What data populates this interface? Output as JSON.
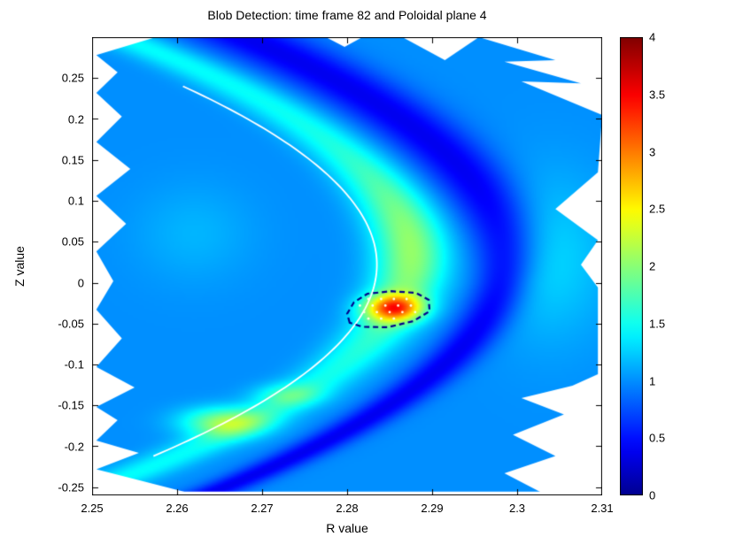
{
  "chart_data": {
    "type": "heatmap",
    "title": "Blob Detection: time frame 82 and Poloidal plane 4",
    "xlabel": "R value",
    "ylabel": "Z value",
    "xlim": [
      2.25,
      2.31
    ],
    "ylim": [
      -0.26,
      0.3
    ],
    "grid": false,
    "xticks": [
      {
        "v": 2.25,
        "label": "2.25"
      },
      {
        "v": 2.26,
        "label": "2.26"
      },
      {
        "v": 2.27,
        "label": "2.27"
      },
      {
        "v": 2.28,
        "label": "2.28"
      },
      {
        "v": 2.29,
        "label": "2.29"
      },
      {
        "v": 2.3,
        "label": "2.3"
      },
      {
        "v": 2.31,
        "label": "2.31"
      }
    ],
    "yticks": [
      {
        "v": -0.25,
        "label": "-0.25"
      },
      {
        "v": -0.2,
        "label": "-0.2"
      },
      {
        "v": -0.15,
        "label": "-0.15"
      },
      {
        "v": -0.1,
        "label": "-0.1"
      },
      {
        "v": -0.05,
        "label": "-0.05"
      },
      {
        "v": 0.0,
        "label": "0"
      },
      {
        "v": 0.05,
        "label": "0.05"
      },
      {
        "v": 0.1,
        "label": "0.1"
      },
      {
        "v": 0.15,
        "label": "0.15"
      },
      {
        "v": 0.2,
        "label": "0.2"
      },
      {
        "v": 0.25,
        "label": "0.25"
      }
    ],
    "colorbar": {
      "min": 0,
      "max": 4,
      "position": "right",
      "ticks": [
        {
          "v": 0,
          "label": "0"
        },
        {
          "v": 0.5,
          "label": "0.5"
        },
        {
          "v": 1,
          "label": "1"
        },
        {
          "v": 1.5,
          "label": "1.5"
        },
        {
          "v": 2,
          "label": "2"
        },
        {
          "v": 2.5,
          "label": "2.5"
        },
        {
          "v": 3,
          "label": "3"
        },
        {
          "v": 3.5,
          "label": "3.5"
        },
        {
          "v": 4,
          "label": "4"
        }
      ]
    },
    "colormap": {
      "name": "jet",
      "stops": [
        [
          0.0,
          [
            0,
            0,
            143
          ]
        ],
        [
          0.11,
          [
            0,
            0,
            255
          ]
        ],
        [
          0.36,
          [
            0,
            255,
            255
          ]
        ],
        [
          0.62,
          [
            255,
            255,
            0
          ]
        ],
        [
          0.87,
          [
            255,
            0,
            0
          ]
        ],
        [
          1.0,
          [
            128,
            0,
            0
          ]
        ]
      ]
    },
    "field": {
      "base": 1.0,
      "dark_band": {
        "vertex_r": 2.2985,
        "vertex_z": 0.03,
        "curvature": 0.42,
        "depth": 0.62,
        "width": 0.0032,
        "width_top_extra": 0.012
      },
      "bright_band": {
        "vertex_r": 2.2875,
        "vertex_z": 0.03,
        "curvature": 0.47,
        "width": 0.0042,
        "amp_base": 0.45,
        "amp_peak": 0.6,
        "peak_z": 0.04,
        "peak_sigma": 0.1
      },
      "blobs": [
        {
          "r": 2.2855,
          "z": -0.031,
          "amp": 1.7,
          "sr": 0.0033,
          "sz": 0.016
        },
        {
          "r": 2.2655,
          "z": -0.17,
          "amp": 0.95,
          "sr": 0.005,
          "sz": 0.018
        },
        {
          "r": 2.273,
          "z": -0.137,
          "amp": 0.45,
          "sr": 0.004,
          "sz": 0.014
        },
        {
          "r": 2.304,
          "z": 0.03,
          "amp": 0.28,
          "sr": 0.007,
          "sz": 0.1
        },
        {
          "r": 2.262,
          "z": 0.06,
          "amp": 0.15,
          "sr": 0.007,
          "sz": 0.06
        }
      ]
    },
    "separatrix": {
      "color": "#ffffff",
      "width": 1.8,
      "vertex_r": 2.2835,
      "vertex_z": 0.022,
      "curvature": 0.48,
      "z_min": -0.215,
      "z_max": 0.24
    },
    "blob_contour": {
      "color": "#00008c",
      "dash": [
        6,
        4
      ],
      "line_width": 2.2,
      "points": [
        [
          2.2803,
          -0.049
        ],
        [
          2.28,
          -0.038
        ],
        [
          2.2808,
          -0.024
        ],
        [
          2.2824,
          -0.0135
        ],
        [
          2.2852,
          -0.0105
        ],
        [
          2.2881,
          -0.0125
        ],
        [
          2.2896,
          -0.021
        ],
        [
          2.2897,
          -0.035
        ],
        [
          2.2878,
          -0.047
        ],
        [
          2.2848,
          -0.0545
        ],
        [
          2.2818,
          -0.054
        ]
      ]
    },
    "blob_markers": {
      "color": "#ffffe0",
      "radius": 1.4,
      "points": [
        [
          2.2825,
          -0.02
        ],
        [
          2.284,
          -0.02
        ],
        [
          2.2855,
          -0.02
        ],
        [
          2.287,
          -0.02
        ],
        [
          2.2815,
          -0.028
        ],
        [
          2.283,
          -0.028
        ],
        [
          2.2845,
          -0.028
        ],
        [
          2.286,
          -0.028
        ],
        [
          2.2875,
          -0.028
        ],
        [
          2.282,
          -0.036
        ],
        [
          2.2835,
          -0.036
        ],
        [
          2.285,
          -0.036
        ],
        [
          2.2865,
          -0.036
        ],
        [
          2.288,
          -0.036
        ],
        [
          2.2825,
          -0.044
        ],
        [
          2.284,
          -0.044
        ],
        [
          2.2855,
          -0.044
        ]
      ]
    },
    "cutouts": [
      {
        "name": "left-jagged-edge",
        "points": [
          [
            2.25,
            0.3
          ],
          [
            2.25,
            -0.26
          ],
          [
            2.2625,
            -0.26
          ],
          [
            2.2505,
            -0.228
          ],
          [
            2.2555,
            -0.208
          ],
          [
            2.2505,
            -0.193
          ],
          [
            2.253,
            -0.168
          ],
          [
            2.2505,
            -0.152
          ],
          [
            2.255,
            -0.128
          ],
          [
            2.2505,
            -0.103
          ],
          [
            2.2535,
            -0.068
          ],
          [
            2.2505,
            -0.033
          ],
          [
            2.2525,
            0.002
          ],
          [
            2.2505,
            0.038
          ],
          [
            2.254,
            0.072
          ],
          [
            2.2505,
            0.106
          ],
          [
            2.2545,
            0.139
          ],
          [
            2.2505,
            0.172
          ],
          [
            2.2535,
            0.203
          ],
          [
            2.2505,
            0.232
          ],
          [
            2.253,
            0.257
          ],
          [
            2.2505,
            0.278
          ],
          [
            2.2575,
            0.3
          ]
        ]
      },
      {
        "name": "right-jagged-edge",
        "points": [
          [
            2.2955,
            0.3
          ],
          [
            2.3045,
            0.272
          ],
          [
            2.2985,
            0.27
          ],
          [
            2.3075,
            0.2435
          ],
          [
            2.3005,
            0.246
          ],
          [
            2.31,
            0.205
          ],
          [
            2.3095,
            0.135
          ],
          [
            2.3045,
            0.09
          ],
          [
            2.3095,
            0.052
          ],
          [
            2.3075,
            0.022
          ],
          [
            2.3095,
            -0.006
          ],
          [
            2.3095,
            -0.112
          ],
          [
            2.3065,
            -0.126
          ],
          [
            2.3005,
            -0.141
          ],
          [
            2.3055,
            -0.161
          ],
          [
            2.2995,
            -0.186
          ],
          [
            2.3045,
            -0.212
          ],
          [
            2.2985,
            -0.233
          ],
          [
            2.3035,
            -0.26
          ],
          [
            2.31,
            -0.26
          ],
          [
            2.31,
            0.3
          ]
        ]
      },
      {
        "name": "top-notch-1",
        "points": [
          [
            2.2865,
            0.3
          ],
          [
            2.2955,
            0.3
          ],
          [
            2.2915,
            0.272
          ]
        ]
      },
      {
        "name": "top-notch-2",
        "points": [
          [
            2.2775,
            0.3
          ],
          [
            2.2818,
            0.3
          ],
          [
            2.2797,
            0.288
          ]
        ]
      },
      {
        "name": "bottom-strip",
        "points": [
          [
            2.25,
            -0.2555
          ],
          [
            2.31,
            -0.2555
          ],
          [
            2.31,
            -0.26
          ],
          [
            2.25,
            -0.26
          ]
        ]
      }
    ]
  }
}
